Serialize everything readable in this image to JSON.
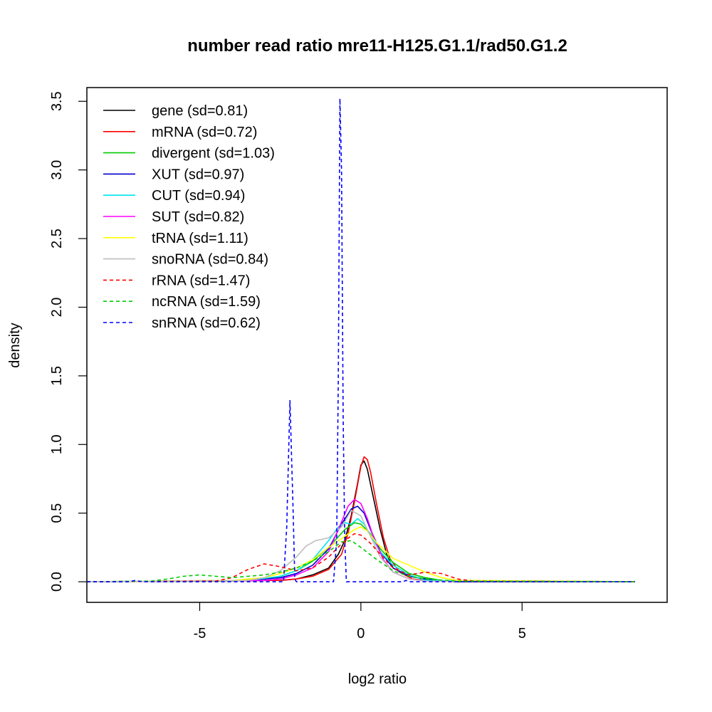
{
  "chart_data": {
    "type": "line",
    "title": "number read ratio mre11-H125.G1.1/rad50.G1.2",
    "xlabel": "log2 ratio",
    "ylabel": "density",
    "xlim": [
      -8.5,
      9.5
    ],
    "ylim": [
      -0.15,
      3.6
    ],
    "x_ticks": [
      -5,
      0,
      5
    ],
    "x_tick_labels": [
      "-5",
      "0",
      "5"
    ],
    "y_ticks": [
      0.0,
      0.5,
      1.0,
      1.5,
      2.0,
      2.5,
      3.0,
      3.5
    ],
    "y_tick_labels": [
      "0.0",
      "0.5",
      "1.0",
      "1.5",
      "2.0",
      "2.5",
      "3.0",
      "3.5"
    ],
    "grid": false,
    "legend_position": "top-left",
    "series": [
      {
        "name": "gene (sd=0.81)",
        "color": "#000000",
        "dash": "solid",
        "x": [
          -8.5,
          -2.5,
          -2.0,
          -1.5,
          -1.0,
          -0.7,
          -0.5,
          -0.3,
          -0.1,
          0.0,
          0.1,
          0.2,
          0.4,
          0.6,
          0.8,
          1.0,
          1.5,
          2.0,
          2.5,
          3.0,
          8.5
        ],
        "y": [
          0,
          0.01,
          0.02,
          0.05,
          0.1,
          0.2,
          0.3,
          0.48,
          0.72,
          0.85,
          0.88,
          0.82,
          0.6,
          0.38,
          0.2,
          0.1,
          0.04,
          0.02,
          0.01,
          0,
          0
        ]
      },
      {
        "name": "mRNA (sd=0.72)",
        "color": "#ff0000",
        "dash": "solid",
        "x": [
          -8.5,
          -2.5,
          -2.0,
          -1.5,
          -1.0,
          -0.6,
          -0.4,
          -0.2,
          0.0,
          0.1,
          0.2,
          0.3,
          0.5,
          0.7,
          0.9,
          1.2,
          1.6,
          2.0,
          8.5
        ],
        "y": [
          0,
          0.01,
          0.02,
          0.04,
          0.09,
          0.2,
          0.35,
          0.58,
          0.84,
          0.91,
          0.89,
          0.8,
          0.55,
          0.32,
          0.17,
          0.07,
          0.02,
          0.01,
          0
        ]
      },
      {
        "name": "divergent (sd=1.03)",
        "color": "#00cc00",
        "dash": "solid",
        "x": [
          -8.5,
          -4.0,
          -3.0,
          -2.5,
          -2.0,
          -1.5,
          -1.0,
          -0.5,
          -0.2,
          0.0,
          0.3,
          0.6,
          1.0,
          1.5,
          2.0,
          2.5,
          3.0,
          8.5
        ],
        "y": [
          0,
          0.005,
          0.02,
          0.04,
          0.08,
          0.15,
          0.25,
          0.38,
          0.43,
          0.42,
          0.35,
          0.24,
          0.14,
          0.06,
          0.03,
          0.01,
          0.005,
          0
        ]
      },
      {
        "name": "XUT (sd=0.97)",
        "color": "#0000cc",
        "dash": "solid",
        "x": [
          -8.5,
          -3.5,
          -2.5,
          -2.0,
          -1.5,
          -1.0,
          -0.6,
          -0.3,
          -0.1,
          0.1,
          0.3,
          0.6,
          1.0,
          1.5,
          2.0,
          2.5,
          8.5
        ],
        "y": [
          0,
          0.01,
          0.03,
          0.06,
          0.12,
          0.24,
          0.42,
          0.53,
          0.55,
          0.5,
          0.38,
          0.22,
          0.1,
          0.04,
          0.02,
          0.005,
          0
        ]
      },
      {
        "name": "CUT (sd=0.94)",
        "color": "#00e5ee",
        "dash": "solid",
        "x": [
          -8.5,
          -3.5,
          -2.5,
          -2.0,
          -1.5,
          -1.0,
          -0.7,
          -0.5,
          -0.3,
          -0.1,
          0.1,
          0.3,
          0.6,
          1.0,
          1.5,
          2.0,
          8.5
        ],
        "y": [
          0,
          0.01,
          0.04,
          0.08,
          0.16,
          0.3,
          0.4,
          0.43,
          0.42,
          0.46,
          0.42,
          0.34,
          0.22,
          0.12,
          0.05,
          0.01,
          0
        ]
      },
      {
        "name": "SUT (sd=0.82)",
        "color": "#ff00ff",
        "dash": "solid",
        "x": [
          -8.5,
          -3.0,
          -2.5,
          -2.0,
          -1.5,
          -1.0,
          -0.7,
          -0.4,
          -0.2,
          0.0,
          0.2,
          0.4,
          0.7,
          1.0,
          1.5,
          2.0,
          8.5
        ],
        "y": [
          0,
          0.01,
          0.02,
          0.05,
          0.1,
          0.22,
          0.38,
          0.55,
          0.6,
          0.57,
          0.46,
          0.32,
          0.16,
          0.07,
          0.02,
          0.005,
          0
        ]
      },
      {
        "name": "tRNA (sd=1.11)",
        "color": "#ffff00",
        "dash": "solid",
        "x": [
          -8.5,
          -4.0,
          -3.0,
          -2.5,
          -2.0,
          -1.5,
          -1.0,
          -0.5,
          -0.2,
          0.0,
          0.2,
          0.5,
          1.0,
          1.5,
          2.0,
          2.5,
          3.0,
          8.5
        ],
        "y": [
          0,
          0.01,
          0.03,
          0.06,
          0.1,
          0.16,
          0.25,
          0.33,
          0.38,
          0.4,
          0.37,
          0.28,
          0.17,
          0.12,
          0.07,
          0.03,
          0.01,
          0
        ]
      },
      {
        "name": "snoRNA (sd=0.84)",
        "color": "#bebebe",
        "dash": "solid",
        "x": [
          -8.5,
          -3.5,
          -3.0,
          -2.5,
          -2.0,
          -1.7,
          -1.4,
          -1.0,
          -0.6,
          -0.3,
          0.0,
          0.3,
          0.6,
          1.0,
          1.5,
          2.0,
          8.5
        ],
        "y": [
          0,
          0.01,
          0.03,
          0.08,
          0.18,
          0.26,
          0.3,
          0.32,
          0.4,
          0.52,
          0.48,
          0.33,
          0.18,
          0.07,
          0.02,
          0.005,
          0
        ]
      },
      {
        "name": "rRNA (sd=1.47)",
        "color": "#ff0000",
        "dash": "dashed",
        "x": [
          -8.5,
          -4.5,
          -4.0,
          -3.5,
          -3.0,
          -2.5,
          -2.0,
          -1.5,
          -1.0,
          -0.5,
          -0.2,
          0.0,
          0.3,
          0.6,
          1.0,
          1.5,
          2.0,
          2.5,
          3.0,
          3.5,
          8.5
        ],
        "y": [
          0,
          0.005,
          0.03,
          0.09,
          0.13,
          0.11,
          0.08,
          0.1,
          0.18,
          0.3,
          0.35,
          0.34,
          0.28,
          0.2,
          0.1,
          0.05,
          0.07,
          0.06,
          0.02,
          0.005,
          0
        ]
      },
      {
        "name": "ncRNA (sd=1.59)",
        "color": "#00cc00",
        "dash": "dashed",
        "x": [
          -8.5,
          -6.5,
          -6.0,
          -5.5,
          -5.0,
          -4.5,
          -4.0,
          -3.5,
          -3.0,
          -2.5,
          -2.0,
          -1.5,
          -1.0,
          -0.6,
          -0.3,
          0.0,
          0.5,
          1.0,
          1.5,
          2.0,
          3.0,
          8.5
        ],
        "y": [
          0,
          0.005,
          0.02,
          0.04,
          0.05,
          0.04,
          0.03,
          0.04,
          0.05,
          0.07,
          0.1,
          0.15,
          0.22,
          0.29,
          0.3,
          0.25,
          0.16,
          0.08,
          0.04,
          0.02,
          0.005,
          0
        ]
      },
      {
        "name": "snRNA (sd=0.62)",
        "color": "#0000ff",
        "dash": "dashed",
        "x": [
          -8.5,
          -7.2,
          -7.0,
          -6.8,
          -2.4,
          -2.3,
          -2.2,
          -2.1,
          -2.05,
          -2.0,
          -0.85,
          -0.75,
          -0.7,
          -0.65,
          -0.6,
          -0.55,
          -0.5,
          -0.45,
          -0.35,
          1.3,
          1.4,
          1.5,
          8.5
        ],
        "y": [
          0,
          0,
          0.01,
          0,
          0,
          0.4,
          1.32,
          0.5,
          0.02,
          0,
          0,
          0.3,
          1.5,
          3.52,
          3.0,
          1.2,
          0.3,
          0,
          0,
          0,
          0.01,
          0,
          0
        ]
      }
    ]
  }
}
